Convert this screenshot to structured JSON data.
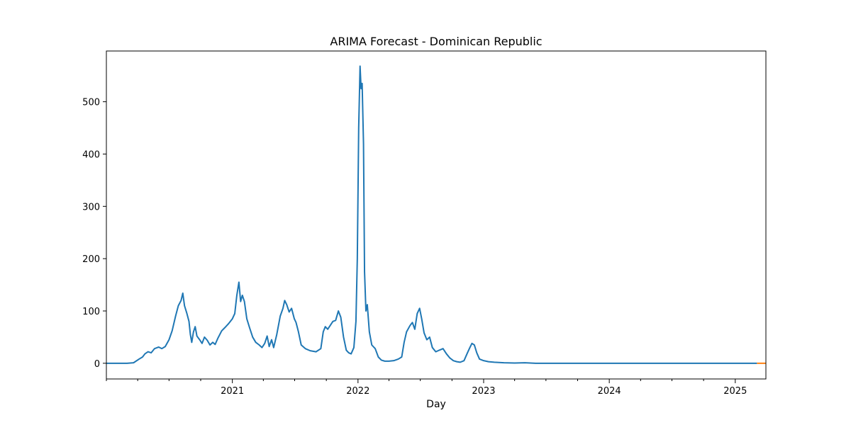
{
  "chart_data": {
    "type": "line",
    "title": "ARIMA Forecast - Dominican Republic",
    "xlabel": "Day",
    "ylabel": "",
    "x_ticks": [
      "2021-01-01",
      "2022-01-01",
      "2023-01-01",
      "2024-01-01",
      "2025-01-01"
    ],
    "x_tick_labels": [
      "2021",
      "2022",
      "2023",
      "2024",
      "2025"
    ],
    "x_range": [
      "2020-01-01",
      "2025-03-31"
    ],
    "y_ticks": [
      0,
      100,
      200,
      300,
      400,
      500
    ],
    "ylim": [
      -30,
      597
    ],
    "grid": false,
    "legend": "none",
    "series": [
      {
        "color": "#1f77b4",
        "points": [
          [
            "2020-01-01",
            0
          ],
          [
            "2020-03-01",
            0
          ],
          [
            "2020-03-20",
            1
          ],
          [
            "2020-04-05",
            8
          ],
          [
            "2020-04-15",
            12
          ],
          [
            "2020-04-22",
            18
          ],
          [
            "2020-05-01",
            22
          ],
          [
            "2020-05-10",
            20
          ],
          [
            "2020-05-20",
            28
          ],
          [
            "2020-06-01",
            31
          ],
          [
            "2020-06-10",
            28
          ],
          [
            "2020-06-20",
            32
          ],
          [
            "2020-07-01",
            45
          ],
          [
            "2020-07-10",
            62
          ],
          [
            "2020-07-20",
            90
          ],
          [
            "2020-07-28",
            110
          ],
          [
            "2020-08-05",
            120
          ],
          [
            "2020-08-10",
            134
          ],
          [
            "2020-08-15",
            110
          ],
          [
            "2020-08-22",
            95
          ],
          [
            "2020-08-28",
            80
          ],
          [
            "2020-09-01",
            55
          ],
          [
            "2020-09-05",
            40
          ],
          [
            "2020-09-10",
            60
          ],
          [
            "2020-09-15",
            70
          ],
          [
            "2020-09-20",
            52
          ],
          [
            "2020-09-28",
            45
          ],
          [
            "2020-10-05",
            38
          ],
          [
            "2020-10-12",
            50
          ],
          [
            "2020-10-20",
            44
          ],
          [
            "2020-10-28",
            35
          ],
          [
            "2020-11-05",
            40
          ],
          [
            "2020-11-12",
            36
          ],
          [
            "2020-11-20",
            48
          ],
          [
            "2020-12-01",
            62
          ],
          [
            "2020-12-10",
            68
          ],
          [
            "2020-12-20",
            75
          ],
          [
            "2021-01-01",
            85
          ],
          [
            "2021-01-08",
            95
          ],
          [
            "2021-01-14",
            130
          ],
          [
            "2021-01-20",
            155
          ],
          [
            "2021-01-25",
            118
          ],
          [
            "2021-01-30",
            130
          ],
          [
            "2021-02-05",
            118
          ],
          [
            "2021-02-12",
            85
          ],
          [
            "2021-02-20",
            68
          ],
          [
            "2021-03-01",
            50
          ],
          [
            "2021-03-10",
            40
          ],
          [
            "2021-03-20",
            35
          ],
          [
            "2021-03-28",
            30
          ],
          [
            "2021-04-05",
            38
          ],
          [
            "2021-04-12",
            52
          ],
          [
            "2021-04-18",
            32
          ],
          [
            "2021-04-25",
            45
          ],
          [
            "2021-05-01",
            30
          ],
          [
            "2021-05-10",
            55
          ],
          [
            "2021-05-20",
            90
          ],
          [
            "2021-05-28",
            105
          ],
          [
            "2021-06-02",
            120
          ],
          [
            "2021-06-08",
            112
          ],
          [
            "2021-06-15",
            98
          ],
          [
            "2021-06-22",
            105
          ],
          [
            "2021-06-30",
            85
          ],
          [
            "2021-07-05",
            78
          ],
          [
            "2021-07-12",
            60
          ],
          [
            "2021-07-20",
            35
          ],
          [
            "2021-08-01",
            28
          ],
          [
            "2021-08-15",
            24
          ],
          [
            "2021-09-01",
            22
          ],
          [
            "2021-09-15",
            28
          ],
          [
            "2021-09-22",
            60
          ],
          [
            "2021-09-28",
            70
          ],
          [
            "2021-10-05",
            65
          ],
          [
            "2021-10-12",
            72
          ],
          [
            "2021-10-20",
            80
          ],
          [
            "2021-10-28",
            82
          ],
          [
            "2021-11-05",
            100
          ],
          [
            "2021-11-12",
            88
          ],
          [
            "2021-11-20",
            50
          ],
          [
            "2021-11-28",
            25
          ],
          [
            "2021-12-05",
            20
          ],
          [
            "2021-12-12",
            18
          ],
          [
            "2021-12-20",
            30
          ],
          [
            "2021-12-26",
            80
          ],
          [
            "2021-12-30",
            200
          ],
          [
            "2022-01-03",
            450
          ],
          [
            "2022-01-07",
            568
          ],
          [
            "2022-01-10",
            525
          ],
          [
            "2022-01-13",
            535
          ],
          [
            "2022-01-17",
            420
          ],
          [
            "2022-01-20",
            175
          ],
          [
            "2022-01-24",
            100
          ],
          [
            "2022-01-28",
            112
          ],
          [
            "2022-02-03",
            60
          ],
          [
            "2022-02-10",
            35
          ],
          [
            "2022-02-20",
            28
          ],
          [
            "2022-03-01",
            12
          ],
          [
            "2022-03-10",
            6
          ],
          [
            "2022-03-20",
            4
          ],
          [
            "2022-04-01",
            4
          ],
          [
            "2022-04-15",
            5
          ],
          [
            "2022-04-28",
            8
          ],
          [
            "2022-05-08",
            12
          ],
          [
            "2022-05-15",
            40
          ],
          [
            "2022-05-22",
            60
          ],
          [
            "2022-06-01",
            72
          ],
          [
            "2022-06-08",
            78
          ],
          [
            "2022-06-15",
            65
          ],
          [
            "2022-06-22",
            95
          ],
          [
            "2022-06-29",
            105
          ],
          [
            "2022-07-05",
            85
          ],
          [
            "2022-07-12",
            58
          ],
          [
            "2022-07-20",
            45
          ],
          [
            "2022-07-28",
            50
          ],
          [
            "2022-08-05",
            30
          ],
          [
            "2022-08-15",
            22
          ],
          [
            "2022-08-25",
            25
          ],
          [
            "2022-09-05",
            28
          ],
          [
            "2022-09-15",
            18
          ],
          [
            "2022-09-25",
            10
          ],
          [
            "2022-10-05",
            5
          ],
          [
            "2022-10-15",
            3
          ],
          [
            "2022-10-25",
            2
          ],
          [
            "2022-11-05",
            5
          ],
          [
            "2022-11-15",
            20
          ],
          [
            "2022-11-22",
            30
          ],
          [
            "2022-11-28",
            38
          ],
          [
            "2022-12-05",
            35
          ],
          [
            "2022-12-12",
            20
          ],
          [
            "2022-12-20",
            8
          ],
          [
            "2023-01-01",
            5
          ],
          [
            "2023-01-15",
            3
          ],
          [
            "2023-02-01",
            2
          ],
          [
            "2023-03-01",
            1
          ],
          [
            "2023-04-01",
            0.5
          ],
          [
            "2023-05-01",
            1
          ],
          [
            "2023-06-01",
            0
          ],
          [
            "2024-01-01",
            0
          ],
          [
            "2025-01-01",
            0
          ],
          [
            "2025-03-05",
            0
          ]
        ]
      },
      {
        "color": "#ff7f0e",
        "points": [
          [
            "2025-03-05",
            0
          ],
          [
            "2025-03-31",
            0
          ]
        ]
      }
    ]
  }
}
